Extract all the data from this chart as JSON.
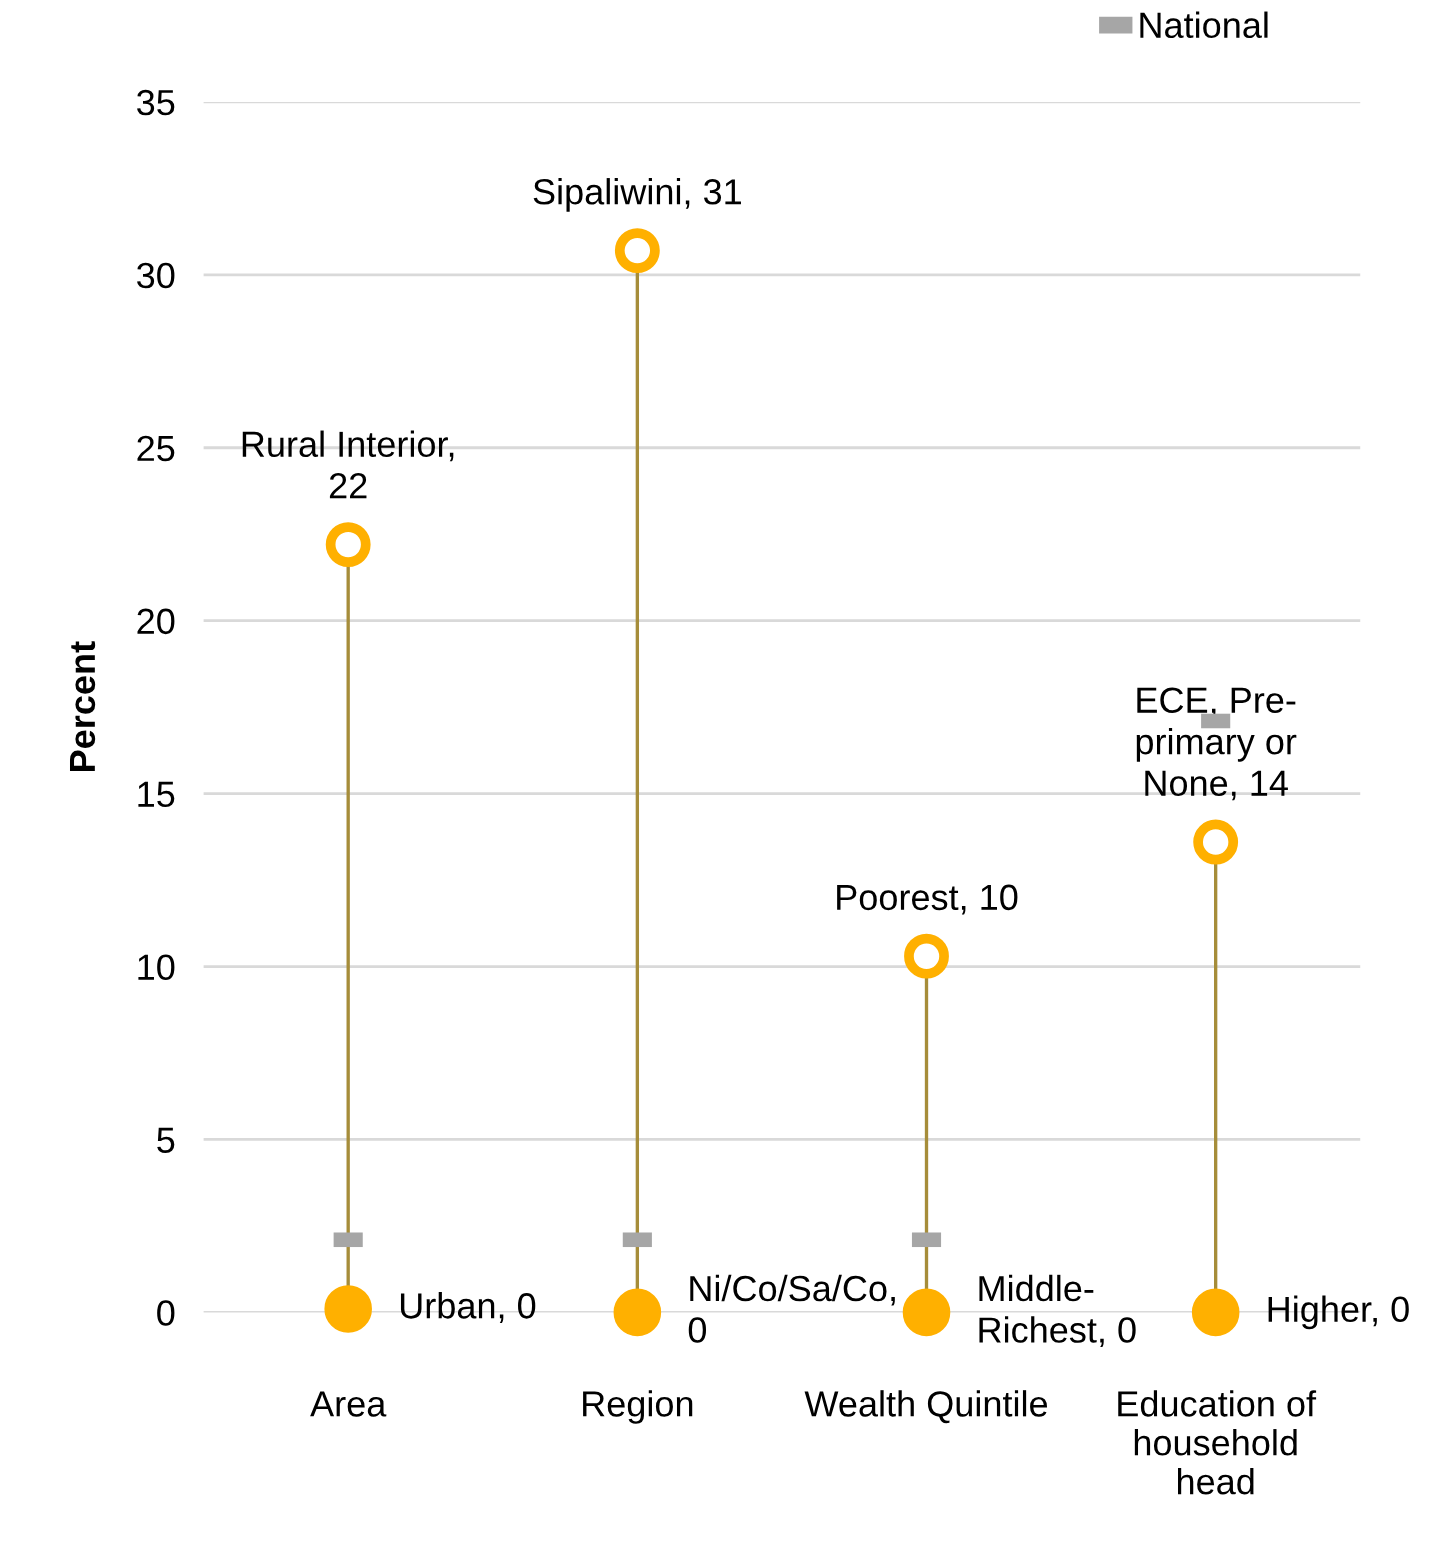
{
  "chart_data": {
    "type": "scatter",
    "ylabel": "Percent",
    "categories": [
      "Area",
      "Region",
      "Wealth Quintile",
      "Education of\nhousehold\nhead"
    ],
    "ylim": [
      0,
      35
    ],
    "yticks": [
      0,
      5,
      10,
      15,
      20,
      25,
      30,
      35
    ],
    "grid": "y",
    "legend": "top right",
    "series": [
      {
        "type": "lollipop",
        "color": "#ffb000",
        "marker": "circle",
        "values": [
          22.2,
          30.7,
          10.3,
          13.6
        ],
        "value_labels": [
          "Rural Interior,\n22",
          "Sipaliwini, 31",
          "Poorest, 10",
          "ECE, Pre-\nprimary or\nNone, 14"
        ]
      },
      {
        "color": "#ffb000",
        "marker": "circle",
        "values": [
          0.1,
          0,
          0,
          0
        ],
        "value_labels": [
          "Urban, 0",
          "Ni/Co/Sa/Co,\n0",
          "Middle-\nRichest, 0",
          "Higher, 0"
        ]
      },
      {
        "name": "National",
        "color": "#a6a6a6",
        "marker": "square",
        "values": [
          2.1,
          2.1,
          2.1,
          17.1
        ]
      }
    ]
  }
}
